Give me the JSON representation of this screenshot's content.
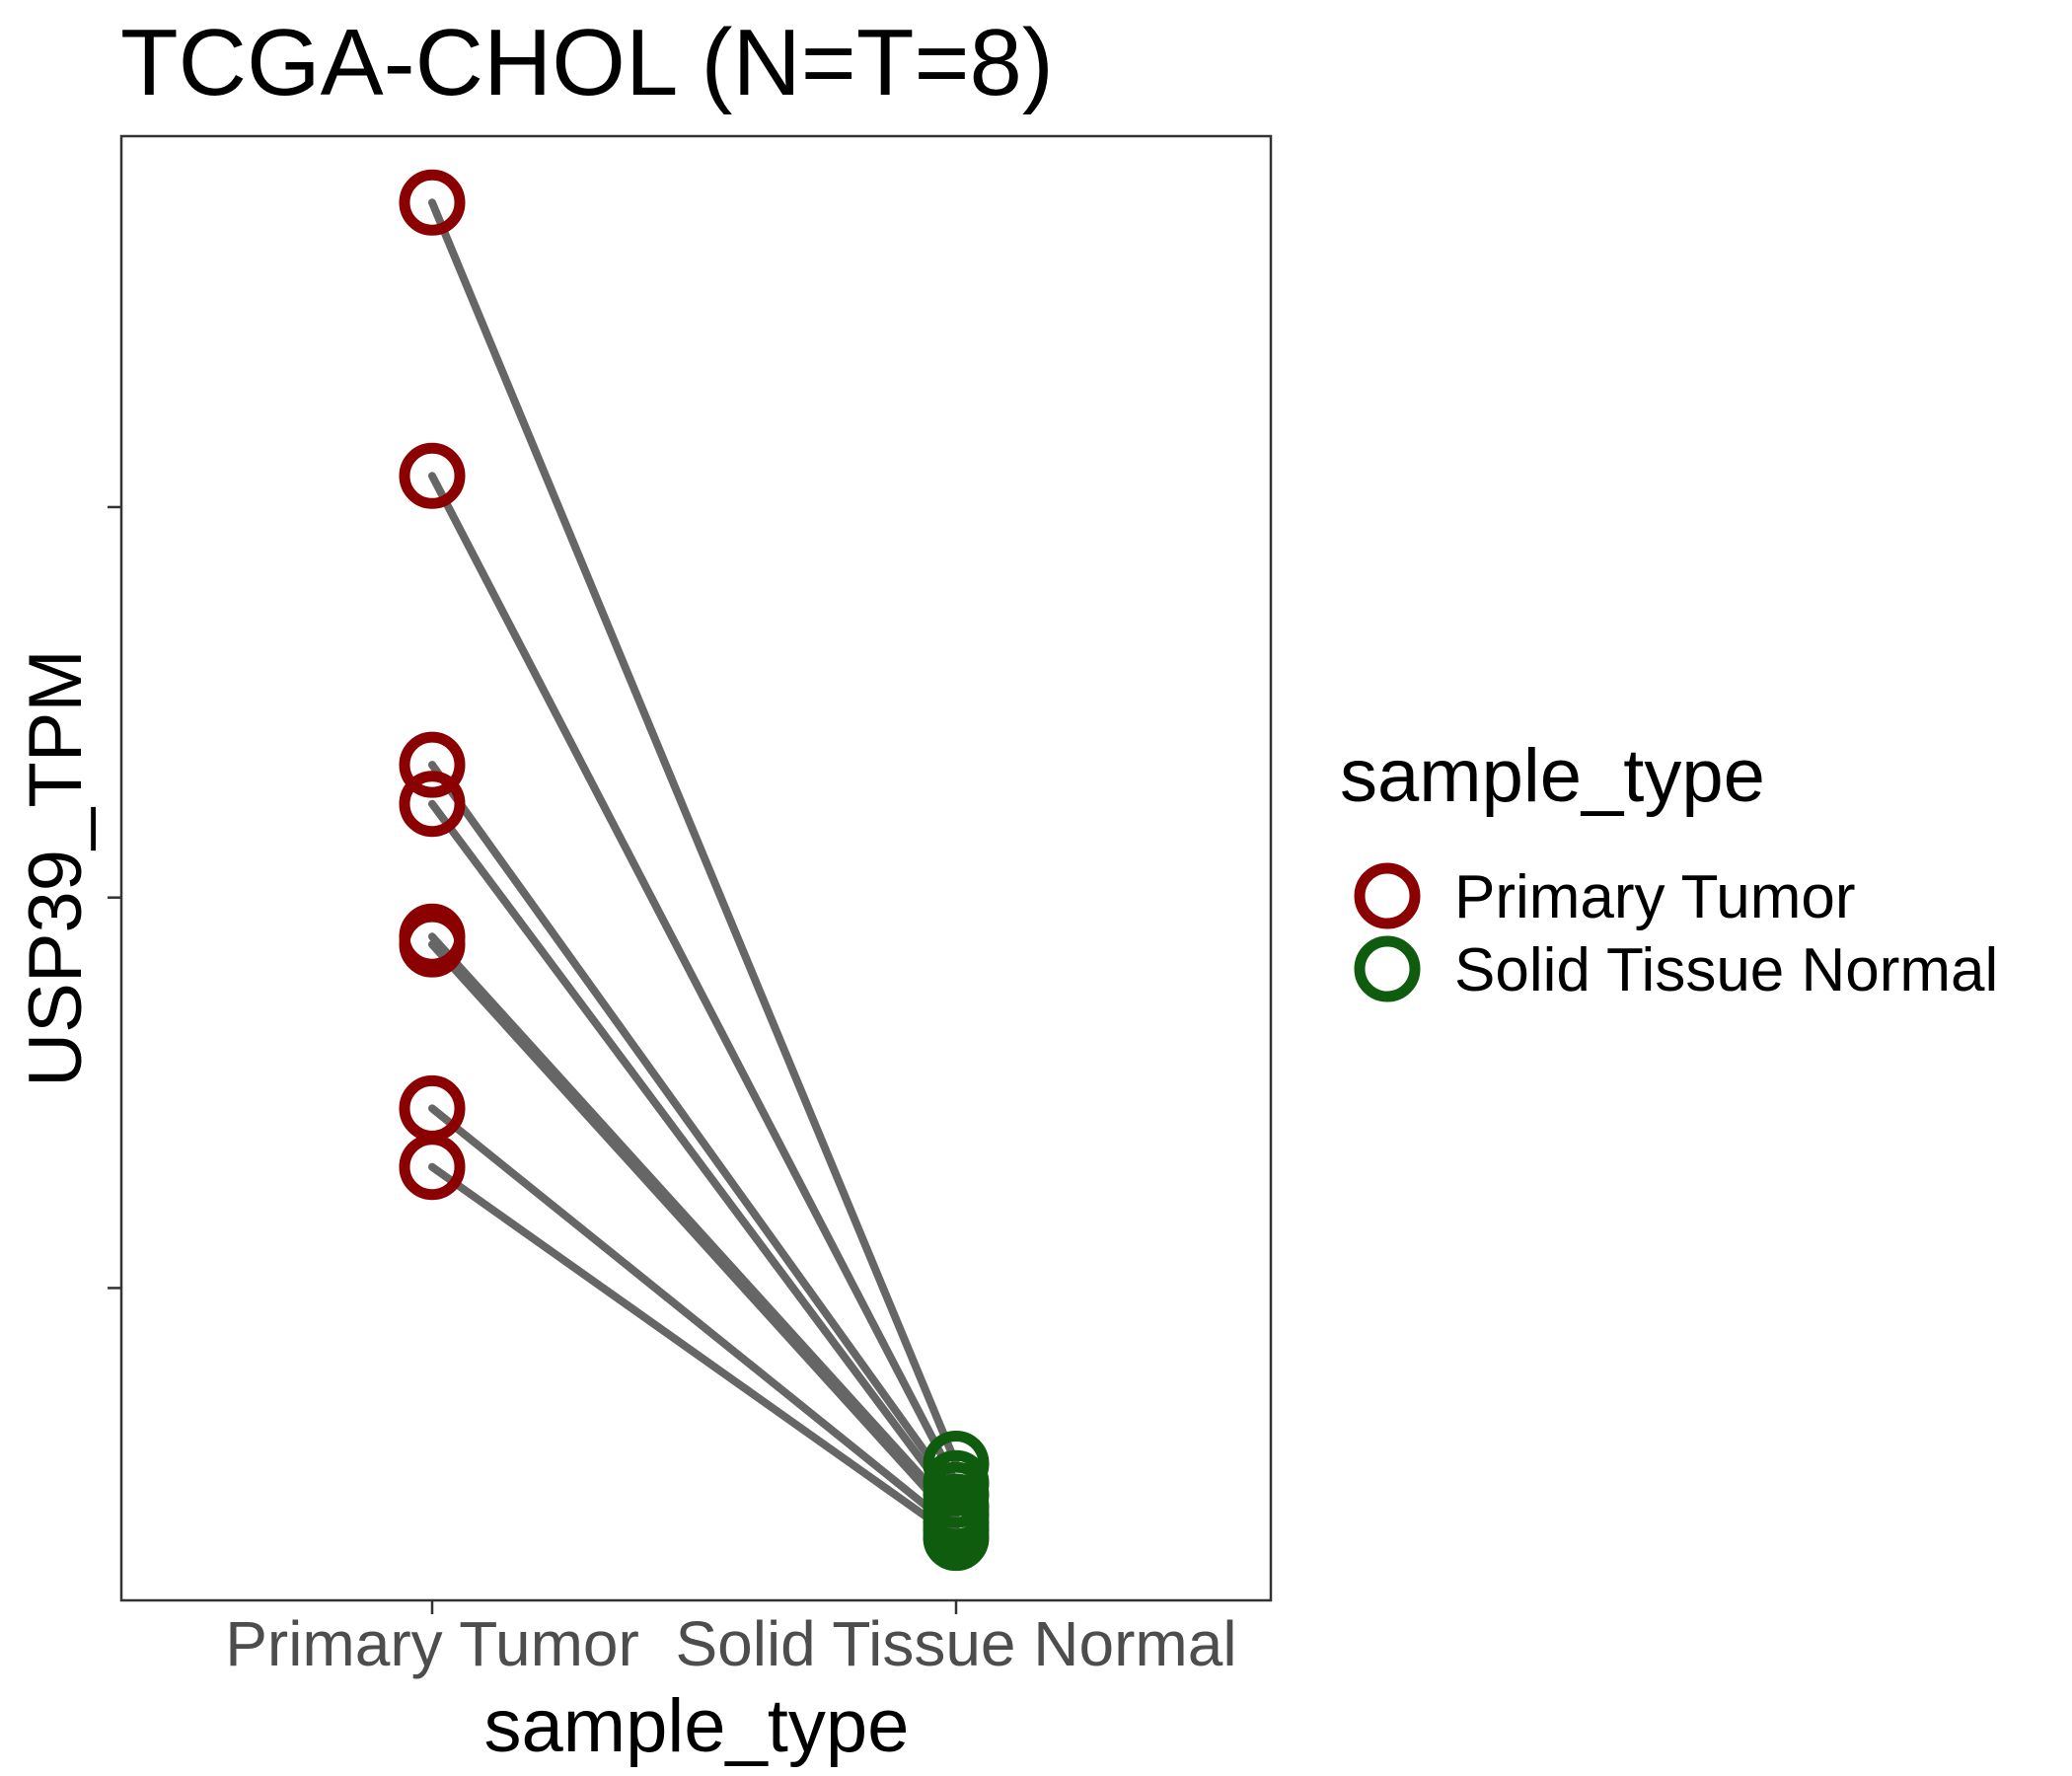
{
  "chart_data": {
    "type": "scatter",
    "subtype": "paired-dot-line",
    "title": "TCGA-CHOL  (N=T=8)",
    "xlabel": "sample_type",
    "ylabel": "USP39_TPM",
    "categories": [
      "Primary Tumor",
      "Solid Tissue Normal"
    ],
    "ylim": [
      0.2,
      3.95
    ],
    "ytick_values": [
      1,
      2,
      3
    ],
    "ytick_labels_shown": false,
    "grid": false,
    "pairs": [
      {
        "tumor": 3.78,
        "normal": 0.55
      },
      {
        "tumor": 3.08,
        "normal": 0.5
      },
      {
        "tumor": 2.34,
        "normal": 0.47
      },
      {
        "tumor": 2.24,
        "normal": 0.44
      },
      {
        "tumor": 1.9,
        "normal": 0.42
      },
      {
        "tumor": 1.88,
        "normal": 0.4
      },
      {
        "tumor": 1.46,
        "normal": 0.38
      },
      {
        "tumor": 1.31,
        "normal": 0.36
      }
    ],
    "series": [
      {
        "name": "Primary Tumor",
        "color": "#8b0000",
        "marker": "open-circle"
      },
      {
        "name": "Solid Tissue Normal",
        "color": "#0f5c0f",
        "marker": "open-circle"
      }
    ],
    "line_color": "#666666",
    "legend": {
      "title": "sample_type",
      "position": "right",
      "entries": [
        "Primary Tumor",
        "Solid Tissue Normal"
      ]
    }
  }
}
